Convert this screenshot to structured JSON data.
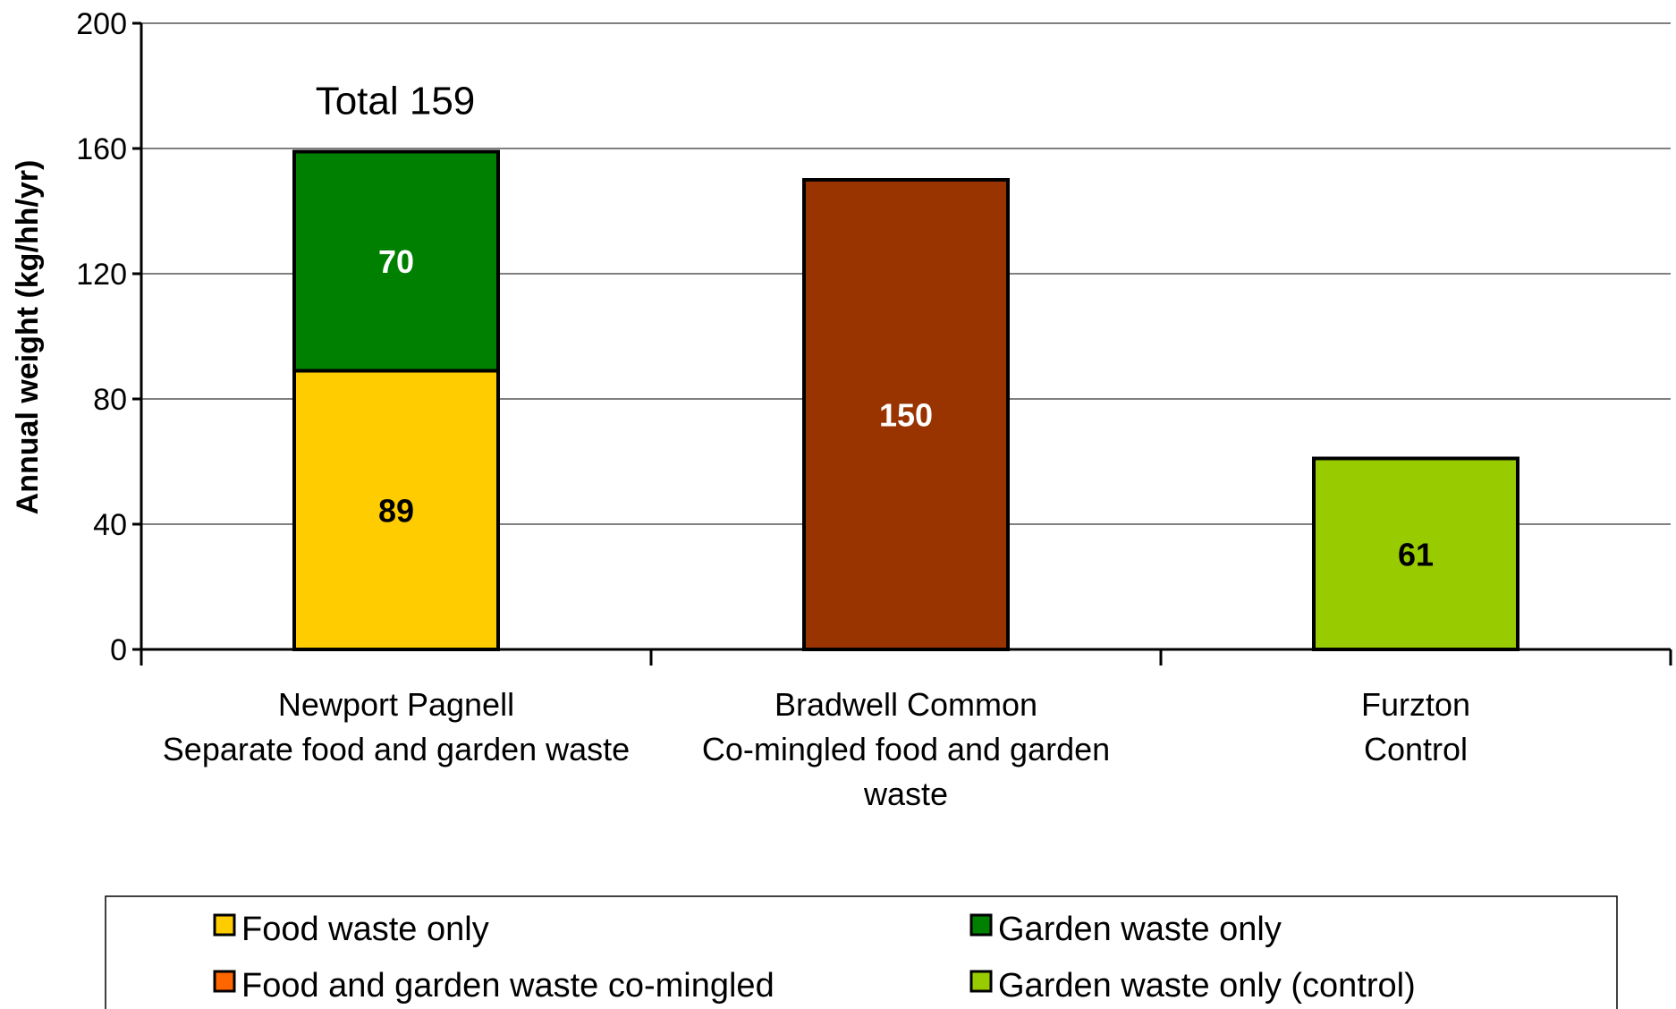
{
  "chart_data": {
    "type": "bar",
    "stacked": true,
    "ylabel": "Annual weight (kg/hh/yr)",
    "ylim": [
      0,
      200
    ],
    "yticks": [
      0,
      40,
      80,
      120,
      160,
      200
    ],
    "grid": true,
    "legend_position": "bottom",
    "categories": [
      [
        "Newport Pagnell",
        "Separate food and garden waste"
      ],
      [
        "Bradwell Common",
        "Co-mingled food and garden",
        "waste"
      ],
      [
        "Furzton",
        "Control"
      ]
    ],
    "series": [
      {
        "name": "Food waste only",
        "color": "#FFCC00",
        "label_color": "#000000",
        "values": [
          89,
          null,
          null
        ]
      },
      {
        "name": "Garden waste only",
        "color": "#008000",
        "label_color": "#FFFFFF",
        "values": [
          70,
          null,
          null
        ]
      },
      {
        "name": "Food and garden waste co-mingled",
        "color": "#993300",
        "label_color": "#FFFFFF",
        "values": [
          null,
          150,
          null
        ]
      },
      {
        "name": "Garden waste only (control)",
        "color": "#99CC00",
        "label_color": "#000000",
        "values": [
          null,
          null,
          61
        ]
      }
    ],
    "legend_swatch_colors": [
      "#FFCC00",
      "#008000",
      "#FF6600",
      "#99CC00"
    ],
    "annotations": [
      {
        "category_index": 0,
        "text": "Total 159",
        "value": 159
      }
    ]
  }
}
